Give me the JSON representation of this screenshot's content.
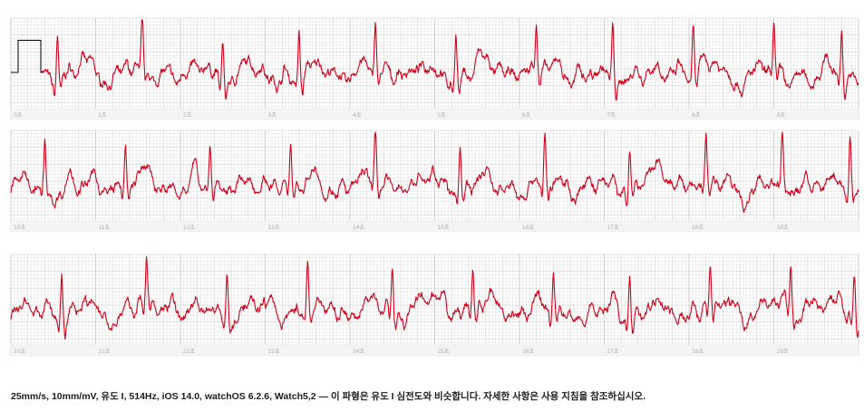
{
  "footer": {
    "text": "25mm/s, 10mm/mV, 유도 I, 514Hz, iOS 14.0, watchOS 6.2.6, Watch5,2 — 이 파형은 유도 I 심전도와 비슷합니다. 자세한 사항은 사용 지침을 참조하십시오."
  },
  "colors": {
    "trace": "#d0021b",
    "grid_minor": "#e3e3e3",
    "grid_major": "#c8c8c8",
    "axis_label": "#b0b0b0",
    "calibration": "#000000"
  },
  "chart_data": {
    "type": "line",
    "paper_speed": "25mm/s",
    "gain": "10mm/mV",
    "lead": "유도 I",
    "strips": [
      {
        "tick_labels": [
          "0초",
          "1초",
          "2초",
          "3초",
          "4초",
          "5초",
          "6초",
          "7초",
          "8초",
          "9초"
        ],
        "x_range_s": [
          0,
          10
        ],
        "r_peaks_s": [
          0.55,
          1.55,
          2.5,
          3.4,
          4.3,
          5.25,
          6.2,
          7.1,
          8.05,
          9.0,
          9.8
        ]
      },
      {
        "tick_labels": [
          "10초",
          "11초",
          "12초",
          "13초",
          "14초",
          "15초",
          "16초",
          "17초",
          "18초",
          "19초"
        ],
        "x_range_s": [
          10,
          20
        ],
        "r_peaks_s": [
          10.4,
          11.35,
          12.35,
          13.3,
          14.3,
          15.3,
          16.3,
          17.3,
          18.2,
          19.1,
          19.9
        ]
      },
      {
        "tick_labels": [
          "20초",
          "21초",
          "22초",
          "23초",
          "24초",
          "25초",
          "26초",
          "27초",
          "28초",
          "29초"
        ],
        "x_range_s": [
          20,
          30
        ],
        "r_peaks_s": [
          20.6,
          21.6,
          22.55,
          23.5,
          24.5,
          25.45,
          26.4,
          27.3,
          28.25,
          29.2,
          29.95
        ]
      }
    ],
    "calibration_pulse_mv": 1.0
  }
}
